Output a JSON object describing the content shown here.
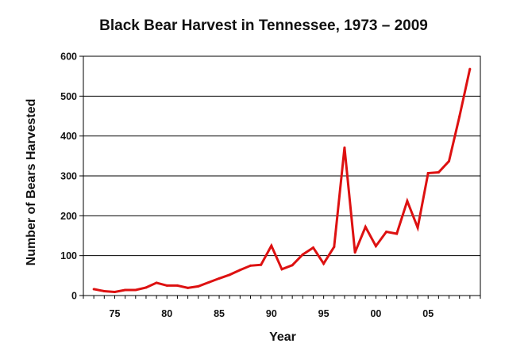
{
  "chart_data": {
    "type": "line",
    "title": "Black Bear Harvest in Tennessee, 1973 – 2009",
    "xlabel": "Year",
    "ylabel": "Number of Bears Harvested",
    "xlim": [
      1972,
      2010
    ],
    "ylim": [
      0,
      600
    ],
    "yticks": [
      0,
      100,
      200,
      300,
      400,
      500,
      600
    ],
    "xticks": [
      {
        "value": 1975,
        "label": "75"
      },
      {
        "value": 1980,
        "label": "80"
      },
      {
        "value": 1985,
        "label": "85"
      },
      {
        "value": 1990,
        "label": "90"
      },
      {
        "value": 1995,
        "label": "95"
      },
      {
        "value": 2000,
        "label": "00"
      },
      {
        "value": 2005,
        "label": "05"
      }
    ],
    "grid": true,
    "series": [
      {
        "name": "Bears Harvested",
        "color": "#dd1111",
        "x": [
          1973,
          1974,
          1975,
          1976,
          1977,
          1978,
          1979,
          1980,
          1981,
          1982,
          1983,
          1984,
          1985,
          1986,
          1987,
          1988,
          1989,
          1990,
          1991,
          1992,
          1993,
          1994,
          1995,
          1996,
          1997,
          1998,
          1999,
          2000,
          2001,
          2002,
          2003,
          2004,
          2005,
          2006,
          2007,
          2008,
          2009
        ],
        "values": [
          16,
          11,
          9,
          14,
          14,
          20,
          32,
          25,
          25,
          19,
          23,
          33,
          43,
          52,
          64,
          75,
          77,
          125,
          66,
          76,
          103,
          120,
          80,
          122,
          371,
          108,
          172,
          124,
          160,
          155,
          237,
          170,
          307,
          309,
          337,
          449,
          568
        ]
      }
    ]
  }
}
